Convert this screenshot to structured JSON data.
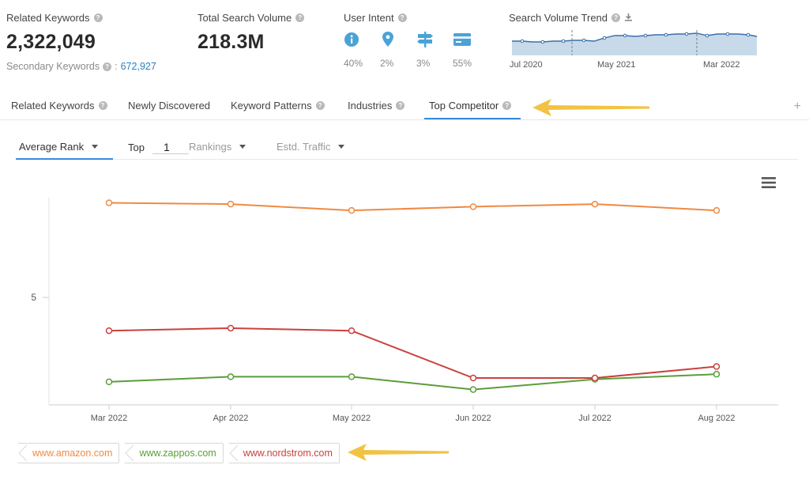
{
  "stats": {
    "related": {
      "label": "Related Keywords",
      "value": "2,322,049",
      "secondary_label": "Secondary Keywords",
      "secondary_value": "672,927"
    },
    "volume": {
      "label": "Total Search Volume",
      "value": "218.3M"
    },
    "intent": {
      "label": "User Intent",
      "items": [
        {
          "icon": "info-icon",
          "pct": "40%"
        },
        {
          "icon": "location-pin-icon",
          "pct": "2%"
        },
        {
          "icon": "signpost-icon",
          "pct": "3%"
        },
        {
          "icon": "credit-card-icon",
          "pct": "55%"
        }
      ]
    },
    "trend": {
      "label": "Search Volume Trend",
      "ticks": [
        "Jul 2020",
        "May 2021",
        "Mar 2022"
      ]
    }
  },
  "tabs": [
    "Related Keywords",
    "Newly Discovered",
    "Keyword Patterns",
    "Industries",
    "Top Competitor"
  ],
  "controls": {
    "metric": "Average Rank",
    "top_label": "Top",
    "top_value": "1",
    "rankings": "Rankings",
    "traffic": "Estd. Traffic"
  },
  "legend": [
    {
      "label": "www.amazon.com",
      "color": "#ef8a43"
    },
    {
      "label": "www.zappos.com",
      "color": "#5a9e3a"
    },
    {
      "label": "www.nordstrom.com",
      "color": "#c9413e"
    }
  ],
  "colors": {
    "accent": "#3b8ad9",
    "intent_icon": "#4aa3d6",
    "arrow": "#f2c343"
  },
  "chart_data": {
    "type": "line",
    "categories": [
      "Mar 2022",
      "Apr 2022",
      "May 2022",
      "Jun 2022",
      "Jul 2022",
      "Aug 2022"
    ],
    "y_tick_labels": [
      "5"
    ],
    "ylim": [
      1.1,
      9.2
    ],
    "y_reversed": true,
    "series": [
      {
        "name": "www.amazon.com",
        "values": [
          1.3,
          1.35,
          1.6,
          1.45,
          1.35,
          1.6
        ]
      },
      {
        "name": "www.zappos.com",
        "values": [
          8.3,
          8.1,
          8.1,
          8.6,
          8.2,
          8.0
        ]
      },
      {
        "name": "www.nordstrom.com",
        "values": [
          6.3,
          6.2,
          6.3,
          8.15,
          8.15,
          7.7
        ]
      }
    ]
  }
}
